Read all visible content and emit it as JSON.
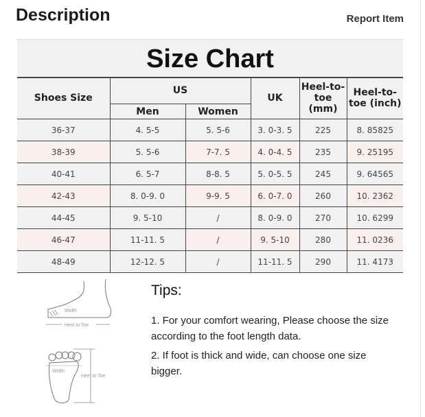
{
  "header": {
    "title": "Description",
    "report_label": "Report Item"
  },
  "size_chart": {
    "title": "Size Chart",
    "headers": {
      "shoes_size": "Shoes Size",
      "us": "US",
      "men": "Men",
      "women": "Women",
      "uk": "UK",
      "heel_mm": "Heel-to-toe (mm)",
      "heel_inch": "Heel-to-toe (inch)"
    },
    "rows": [
      [
        "36-37",
        "4. 5-5",
        "5. 5-6",
        "3. 0-3. 5",
        "225",
        "8. 85825"
      ],
      [
        "38-39",
        "5. 5-6",
        "7-7. 5",
        "4. 0-4. 5",
        "235",
        "9. 25195"
      ],
      [
        "40-41",
        "6. 5-7",
        "8-8. 5",
        "5. 0-5. 5",
        "245",
        "9. 64565"
      ],
      [
        "42-43",
        "8. 0-9. 0",
        "9-9. 5",
        "6. 0-7. 0",
        "260",
        "10. 2362"
      ],
      [
        "44-45",
        "9. 5-10",
        "/",
        "8. 0-9. 0",
        "270",
        "10. 6299"
      ],
      [
        "46-47",
        "11-11. 5",
        "/",
        "9. 5-10",
        "280",
        "11. 0236"
      ],
      [
        "48-49",
        "12-12. 5",
        "/",
        "11-11. 5",
        "290",
        "11. 4173"
      ]
    ]
  },
  "diagrams": {
    "width_label": "Width",
    "heel_to_toe_label": "Heel to Toe"
  },
  "tips": {
    "heading": "Tips:",
    "items": [
      "1. For your comfort wearing, Please choose the size according to the foot length data.",
      "2. If foot is thick and wide, can choose one size bigger."
    ]
  }
}
